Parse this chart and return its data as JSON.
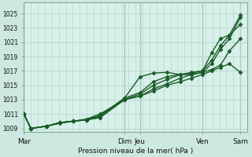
{
  "title": "",
  "xlabel": "Pression niveau de la mer( hPa )",
  "ylabel": "",
  "background_color": "#cce8e0",
  "plot_bg_color": "#d8f0ea",
  "grid_color": "#b8d8d0",
  "line_color": "#1a5c28",
  "ylim": [
    1008.5,
    1026.5
  ],
  "xlim": [
    0.0,
    1.0
  ],
  "yticks": [
    1009,
    1011,
    1013,
    1015,
    1017,
    1019,
    1021,
    1023,
    1025
  ],
  "xtick_positions": [
    0.0,
    0.45,
    0.52,
    0.8,
    0.97
  ],
  "xtick_labels": [
    "Mar",
    "Dim",
    "Jeu",
    "Ven",
    "Sam"
  ],
  "vline_positions": [
    0.0,
    0.45,
    0.52,
    0.8,
    0.97
  ],
  "series": [
    {
      "x": [
        0.0,
        0.03,
        0.1,
        0.16,
        0.22,
        0.28,
        0.34,
        0.45,
        0.52,
        0.58,
        0.64,
        0.7,
        0.75,
        0.8,
        0.84,
        0.88,
        0.92,
        0.97
      ],
      "y": [
        1011.0,
        1009.0,
        1009.3,
        1009.8,
        1010.0,
        1010.2,
        1010.5,
        1013.0,
        1013.5,
        1014.5,
        1015.2,
        1016.0,
        1016.5,
        1016.8,
        1018.0,
        1020.0,
        1021.5,
        1024.5
      ]
    },
    {
      "x": [
        0.0,
        0.03,
        0.1,
        0.16,
        0.22,
        0.28,
        0.34,
        0.45,
        0.52,
        0.58,
        0.64,
        0.7,
        0.75,
        0.8,
        0.84,
        0.88,
        0.92,
        0.97
      ],
      "y": [
        1011.0,
        1009.0,
        1009.3,
        1009.8,
        1010.0,
        1010.2,
        1010.5,
        1013.0,
        1013.8,
        1015.0,
        1015.8,
        1016.5,
        1016.8,
        1017.0,
        1018.5,
        1020.5,
        1022.0,
        1024.8
      ]
    },
    {
      "x": [
        0.0,
        0.03,
        0.1,
        0.16,
        0.22,
        0.28,
        0.34,
        0.45,
        0.52,
        0.58,
        0.64,
        0.7,
        0.75,
        0.8,
        0.84,
        0.88,
        0.92,
        0.97
      ],
      "y": [
        1011.0,
        1009.0,
        1009.3,
        1009.7,
        1010.0,
        1010.2,
        1010.7,
        1013.2,
        1016.2,
        1016.7,
        1016.8,
        1016.5,
        1016.5,
        1016.8,
        1017.2,
        1017.8,
        1019.8,
        1021.5
      ]
    },
    {
      "x": [
        0.0,
        0.03,
        0.1,
        0.16,
        0.22,
        0.28,
        0.34,
        0.45,
        0.52,
        0.58,
        0.64,
        0.7,
        0.75,
        0.8,
        0.84,
        0.88,
        0.92,
        0.97
      ],
      "y": [
        1011.0,
        1009.0,
        1009.3,
        1009.8,
        1010.0,
        1010.2,
        1010.8,
        1013.2,
        1014.0,
        1015.5,
        1016.2,
        1016.5,
        1016.7,
        1017.0,
        1019.5,
        1021.5,
        1022.0,
        1023.5
      ]
    },
    {
      "x": [
        0.0,
        0.03,
        0.1,
        0.16,
        0.22,
        0.28,
        0.34,
        0.45,
        0.52,
        0.58,
        0.64,
        0.7,
        0.75,
        0.8,
        0.84,
        0.88,
        0.92,
        0.97
      ],
      "y": [
        1011.0,
        1009.0,
        1009.3,
        1009.8,
        1010.0,
        1010.3,
        1011.0,
        1013.0,
        1013.5,
        1014.2,
        1015.0,
        1015.5,
        1016.0,
        1016.5,
        1017.0,
        1017.5,
        1018.0,
        1016.8
      ]
    }
  ],
  "marker": "D",
  "marker_size": 2.5,
  "linewidth": 1.0
}
